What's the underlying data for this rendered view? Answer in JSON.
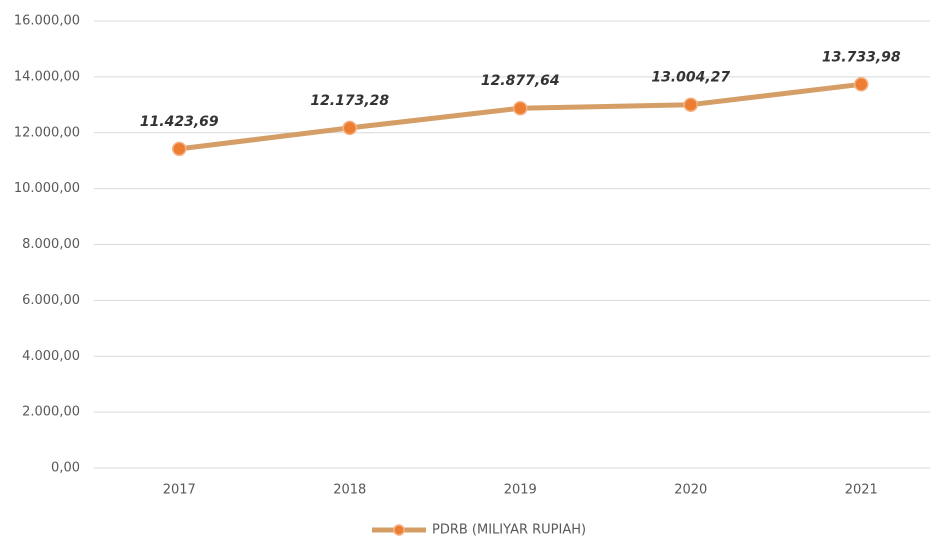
{
  "chart_data": {
    "type": "line",
    "categories": [
      "2017",
      "2018",
      "2019",
      "2020",
      "2021"
    ],
    "series": [
      {
        "name": "PDRB (MILIYAR RUPIAH)",
        "color": "#d59e67",
        "marker_color": "#ed7d31",
        "values": [
          11423.69,
          12173.28,
          12877.64,
          13004.27,
          13733.98
        ],
        "value_labels": [
          "11.423,69",
          "12.173,28",
          "12.877,64",
          "13.004,27",
          "13.733,98"
        ]
      }
    ],
    "ylim": [
      0,
      16000
    ],
    "yticks": [
      {
        "value": 0,
        "label": "0,00"
      },
      {
        "value": 2000,
        "label": "2.000,00"
      },
      {
        "value": 4000,
        "label": "4.000,00"
      },
      {
        "value": 6000,
        "label": "6.000,00"
      },
      {
        "value": 8000,
        "label": "8.000,00"
      },
      {
        "value": 10000,
        "label": "10.000,00"
      },
      {
        "value": 12000,
        "label": "12.000,00"
      },
      {
        "value": 14000,
        "label": "14.000,00"
      },
      {
        "value": 16000,
        "label": "16.000,00"
      }
    ],
    "grid": true,
    "legend": "bottom"
  }
}
